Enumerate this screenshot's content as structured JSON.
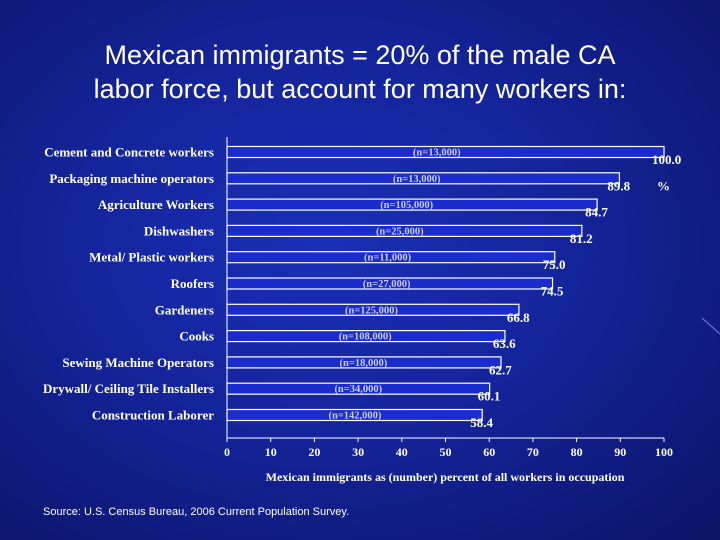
{
  "title_lines": [
    "Mexican immigrants = 20% of the male CA",
    "labor force, but account for many workers in:"
  ],
  "source": "Source: U.S. Census Bureau, 2006 Current Population Survey.",
  "colors": {
    "bar": "#1a2ccc",
    "bar_outline": "#ffffff",
    "text": "#ffffff"
  },
  "chart_data": {
    "type": "bar",
    "orientation": "horizontal",
    "title": "",
    "xlabel": "Mexican immigrants as (number) percent of all workers in occupation",
    "ylabel": "",
    "xlim": [
      0,
      100
    ],
    "xticks": [
      0,
      10,
      20,
      30,
      40,
      50,
      60,
      70,
      80,
      90,
      100
    ],
    "grid": false,
    "unit_annotation": "%",
    "categories": [
      "Cement and Concrete workers",
      "Packaging machine operators",
      "Agriculture Workers",
      "Dishwashers",
      "Metal/ Plastic workers",
      "Roofers",
      "Gardeners",
      "Cooks",
      "Sewing Machine Operators",
      "Drywall/ Ceiling Tile Installers",
      "Construction Laborer"
    ],
    "values": [
      100.0,
      89.8,
      84.7,
      81.2,
      75.0,
      74.5,
      66.8,
      63.6,
      62.7,
      60.1,
      58.4
    ],
    "value_labels": [
      "100.0",
      "89.8",
      "84.7",
      "81.2",
      "75.0",
      "74.5",
      "66.8",
      "63.6",
      "62.7",
      "60.1",
      "58.4"
    ],
    "counts": [
      "(n=13,000)",
      "(n=13,000)",
      "(n=105,000)",
      "(n=25,000)",
      "(n=11,000)",
      "(n=27,000)",
      "(n=125,000)",
      "(n=108,000)",
      "(n=18,000)",
      "(n=34,000)",
      "(n=142,000)"
    ]
  }
}
